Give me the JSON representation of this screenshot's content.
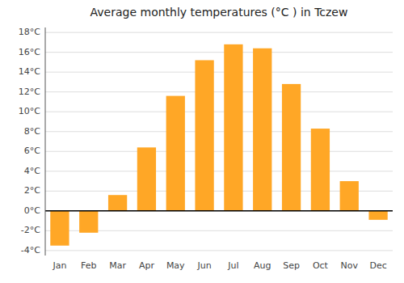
{
  "chart_data": {
    "type": "bar",
    "title": "Average monthly temperatures (°C ) in Tczew",
    "categories": [
      "Jan",
      "Feb",
      "Mar",
      "Apr",
      "May",
      "Jun",
      "Jul",
      "Aug",
      "Sep",
      "Oct",
      "Nov",
      "Dec"
    ],
    "values": [
      -3.5,
      -2.2,
      1.6,
      6.4,
      11.6,
      15.2,
      16.8,
      16.4,
      12.8,
      8.3,
      3.0,
      -0.9
    ],
    "color": "#FFA726",
    "ylim": [
      -4.5,
      18.5
    ],
    "yticks": [
      {
        "value": -4,
        "label": "-4°C"
      },
      {
        "value": -2,
        "label": "-2°C"
      },
      {
        "value": 0,
        "label": "0°C"
      },
      {
        "value": 2,
        "label": "2°C"
      },
      {
        "value": 4,
        "label": "4°C"
      },
      {
        "value": 6,
        "label": "6°C"
      },
      {
        "value": 8,
        "label": "8°C"
      },
      {
        "value": 10,
        "label": "10°C"
      },
      {
        "value": 12,
        "label": "12°C"
      },
      {
        "value": 14,
        "label": "14°C"
      },
      {
        "value": 16,
        "label": "16°C"
      },
      {
        "value": 18,
        "label": "18°C"
      }
    ],
    "grid": true
  }
}
